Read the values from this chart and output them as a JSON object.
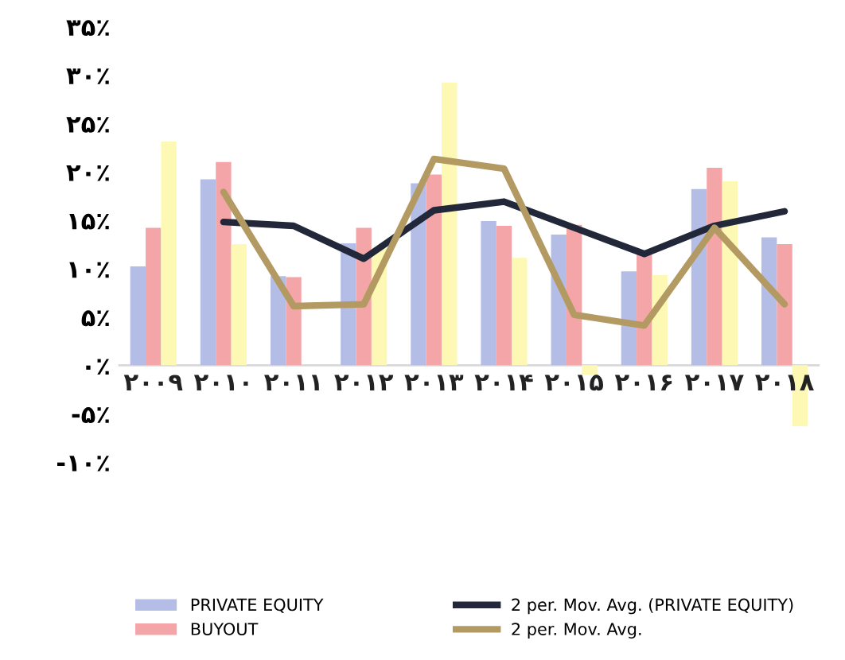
{
  "chart_data": {
    "type": "bar",
    "categories": [
      "۲۰۰۹",
      "۲۰۱۰",
      "۲۰۱۱",
      "۲۰۱۲",
      "۲۰۱۳",
      "۲۰۱۴",
      "۲۰۱۵",
      "۲۰۱۶",
      "۲۰۱۷",
      "۲۰۱۸"
    ],
    "series": [
      {
        "name": "PRIVATE EQUITY",
        "color": "#b4bde6",
        "values": [
          10.2,
          19.2,
          9.2,
          12.6,
          18.8,
          14.9,
          13.5,
          9.7,
          18.2,
          13.2
        ]
      },
      {
        "name": "BUYOUT",
        "color": "#f4a5a8",
        "values": [
          14.2,
          21.0,
          9.1,
          14.2,
          19.7,
          14.4,
          14.5,
          11.6,
          20.4,
          12.5
        ]
      },
      {
        "color": "#fdf9b4",
        "values": [
          23.1,
          12.5,
          0,
          12.1,
          29.2,
          11.1,
          -1,
          9.3,
          19.0,
          -6.3
        ]
      },
      {
        "name": "2 per. Mov. Avg. (PRIVATE EQUITY)",
        "type": "line",
        "color": "#22283a",
        "values": [
          null,
          14.8,
          14.4,
          11.0,
          16.0,
          16.9,
          14.2,
          11.5,
          14.4,
          15.9
        ]
      },
      {
        "name": "2 per. Mov. Avg.",
        "type": "line",
        "color": "#b39a62",
        "values": [
          null,
          17.9,
          6.1,
          6.3,
          21.3,
          20.3,
          5.2,
          4.1,
          14.2,
          6.3
        ]
      }
    ],
    "ylim": [
      -10,
      35
    ],
    "yticks": [
      {
        "value": -10,
        "label": "-۱۰٪"
      },
      {
        "value": -5,
        "label": "-۵٪"
      },
      {
        "value": 0,
        "label": "۰٪"
      },
      {
        "value": 5,
        "label": "۵٪"
      },
      {
        "value": 10,
        "label": "۱۰٪"
      },
      {
        "value": 15,
        "label": "۱۵٪"
      },
      {
        "value": 20,
        "label": "۲۰٪"
      },
      {
        "value": 25,
        "label": "۲۵٪"
      },
      {
        "value": 30,
        "label": "۳۰٪"
      },
      {
        "value": 35,
        "label": "۳۵٪"
      }
    ],
    "grid": false,
    "legend": "bottom",
    "marker": "none",
    "line_style": "solid"
  }
}
